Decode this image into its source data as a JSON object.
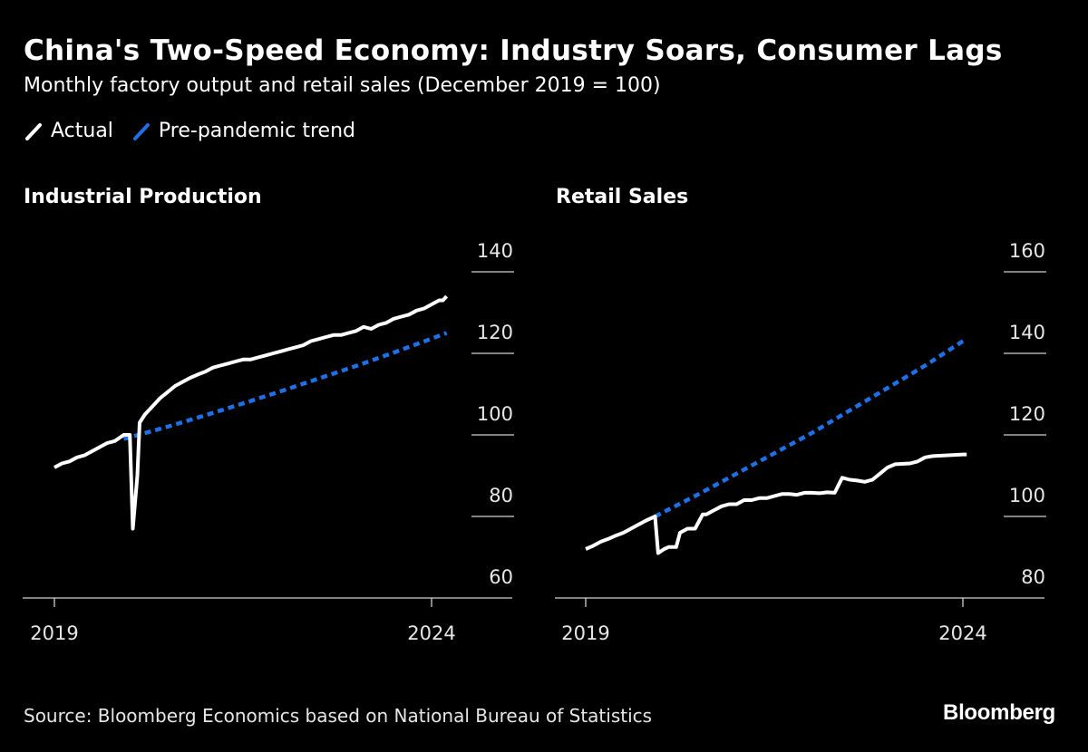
{
  "header": {
    "title": "China's Two-Speed Economy: Industry Soars, Consumer Lags",
    "subtitle": "Monthly factory output and retail sales (December 2019 = 100)"
  },
  "legend": {
    "items": [
      {
        "label": "Actual",
        "color": "#ffffff",
        "icon": "slash-white-icon"
      },
      {
        "label": "Pre-pandemic trend",
        "color": "#1f6fe5",
        "icon": "slash-blue-icon"
      }
    ]
  },
  "footer": {
    "source": "Source: Bloomberg Economics based on National Bureau of Statistics",
    "brand": "Bloomberg"
  },
  "chart_data": [
    {
      "type": "line",
      "title": "Industrial Production",
      "x_tick_labels": [
        "2019",
        "2024"
      ],
      "xlim": [
        2019.0,
        2024.0
      ],
      "ylim": [
        60,
        140
      ],
      "y_ticks": [
        60,
        80,
        100,
        120,
        140
      ],
      "y_axis_side": "right",
      "series": [
        {
          "name": "Actual",
          "color": "#ffffff",
          "style": "solid",
          "points": [
            [
              2019.0,
              92
            ],
            [
              2019.1,
              93
            ],
            [
              2019.2,
              93.5
            ],
            [
              2019.3,
              94.5
            ],
            [
              2019.4,
              95
            ],
            [
              2019.5,
              96
            ],
            [
              2019.6,
              97
            ],
            [
              2019.7,
              98
            ],
            [
              2019.8,
              98.5
            ],
            [
              2019.92,
              100
            ],
            [
              2020.0,
              100
            ],
            [
              2020.04,
              77
            ],
            [
              2020.1,
              90
            ],
            [
              2020.13,
              103
            ],
            [
              2020.2,
              105
            ],
            [
              2020.3,
              107
            ],
            [
              2020.4,
              109
            ],
            [
              2020.5,
              110.5
            ],
            [
              2020.6,
              112
            ],
            [
              2020.7,
              113
            ],
            [
              2020.8,
              114
            ],
            [
              2020.9,
              114.8
            ],
            [
              2021.0,
              115.5
            ],
            [
              2021.1,
              116.5
            ],
            [
              2021.2,
              117
            ],
            [
              2021.3,
              117.5
            ],
            [
              2021.4,
              118
            ],
            [
              2021.5,
              118.5
            ],
            [
              2021.6,
              118.5
            ],
            [
              2021.7,
              119
            ],
            [
              2021.8,
              119.5
            ],
            [
              2021.9,
              120
            ],
            [
              2022.0,
              120.5
            ],
            [
              2022.1,
              121
            ],
            [
              2022.2,
              121.5
            ],
            [
              2022.3,
              122
            ],
            [
              2022.4,
              123
            ],
            [
              2022.5,
              123.5
            ],
            [
              2022.6,
              124
            ],
            [
              2022.7,
              124.5
            ],
            [
              2022.8,
              124.5
            ],
            [
              2022.9,
              125
            ],
            [
              2023.0,
              125.5
            ],
            [
              2023.1,
              126.5
            ],
            [
              2023.2,
              126
            ],
            [
              2023.3,
              127
            ],
            [
              2023.4,
              127.5
            ],
            [
              2023.5,
              128.5
            ],
            [
              2023.6,
              129
            ],
            [
              2023.7,
              129.5
            ],
            [
              2023.8,
              130.5
            ],
            [
              2023.9,
              131
            ],
            [
              2024.0,
              132
            ],
            [
              2024.1,
              133
            ],
            [
              2024.15,
              133
            ],
            [
              2024.2,
              134
            ]
          ]
        },
        {
          "name": "Pre-pandemic trend",
          "color": "#1f6fe5",
          "style": "dashed",
          "points": [
            [
              2019.92,
              99
            ],
            [
              2020.5,
              102
            ],
            [
              2021.0,
              104.8
            ],
            [
              2021.5,
              107.7
            ],
            [
              2022.0,
              110.7
            ],
            [
              2022.5,
              113.8
            ],
            [
              2023.0,
              116.9
            ],
            [
              2023.5,
              120.2
            ],
            [
              2024.0,
              123.6
            ],
            [
              2024.2,
              125
            ]
          ]
        }
      ]
    },
    {
      "type": "line",
      "title": "Retail Sales",
      "x_tick_labels": [
        "2019",
        "2024"
      ],
      "xlim": [
        2019.0,
        2024.0
      ],
      "ylim": [
        80,
        160
      ],
      "y_ticks": [
        80,
        100,
        120,
        140,
        160
      ],
      "y_axis_side": "right",
      "series": [
        {
          "name": "Actual",
          "color": "#ffffff",
          "style": "solid",
          "points": [
            [
              2019.0,
              92
            ],
            [
              2019.1,
              92.8
            ],
            [
              2019.2,
              93.8
            ],
            [
              2019.3,
              94.5
            ],
            [
              2019.4,
              95.3
            ],
            [
              2019.5,
              96
            ],
            [
              2019.6,
              97
            ],
            [
              2019.7,
              98
            ],
            [
              2019.8,
              99
            ],
            [
              2019.92,
              100
            ],
            [
              2019.96,
              91
            ],
            [
              2020.04,
              92
            ],
            [
              2020.1,
              92.5
            ],
            [
              2020.2,
              92.5
            ],
            [
              2020.25,
              96
            ],
            [
              2020.35,
              97
            ],
            [
              2020.45,
              97
            ],
            [
              2020.55,
              100.5
            ],
            [
              2020.6,
              100.5
            ],
            [
              2020.7,
              101.5
            ],
            [
              2020.8,
              102.5
            ],
            [
              2020.9,
              103
            ],
            [
              2021.0,
              103
            ],
            [
              2021.1,
              104
            ],
            [
              2021.2,
              104
            ],
            [
              2021.3,
              104.5
            ],
            [
              2021.4,
              104.5
            ],
            [
              2021.5,
              105
            ],
            [
              2021.6,
              105.5
            ],
            [
              2021.7,
              105.5
            ],
            [
              2021.8,
              105.3
            ],
            [
              2021.9,
              105.8
            ],
            [
              2022.0,
              105.8
            ],
            [
              2022.1,
              105.7
            ],
            [
              2022.2,
              105.9
            ],
            [
              2022.3,
              105.8
            ],
            [
              2022.4,
              109.5
            ],
            [
              2022.5,
              109
            ],
            [
              2022.6,
              108.8
            ],
            [
              2022.7,
              108.5
            ],
            [
              2022.8,
              109
            ],
            [
              2022.9,
              110.5
            ],
            [
              2023.0,
              112
            ],
            [
              2023.1,
              112.8
            ],
            [
              2023.3,
              113
            ],
            [
              2023.4,
              113.5
            ],
            [
              2023.5,
              114.5
            ],
            [
              2023.6,
              114.8
            ],
            [
              2023.8,
              115
            ],
            [
              2024.0,
              115.2
            ],
            [
              2024.05,
              115.2
            ]
          ]
        },
        {
          "name": "Pre-pandemic trend",
          "color": "#1f6fe5",
          "style": "dashed",
          "points": [
            [
              2019.92,
              100
            ],
            [
              2020.5,
              105.5
            ],
            [
              2021.0,
              110.5
            ],
            [
              2021.5,
              115.5
            ],
            [
              2022.0,
              120.5
            ],
            [
              2022.5,
              126
            ],
            [
              2023.0,
              131.5
            ],
            [
              2023.5,
              137
            ],
            [
              2024.0,
              143
            ],
            [
              2024.05,
              143.5
            ]
          ]
        }
      ]
    }
  ]
}
